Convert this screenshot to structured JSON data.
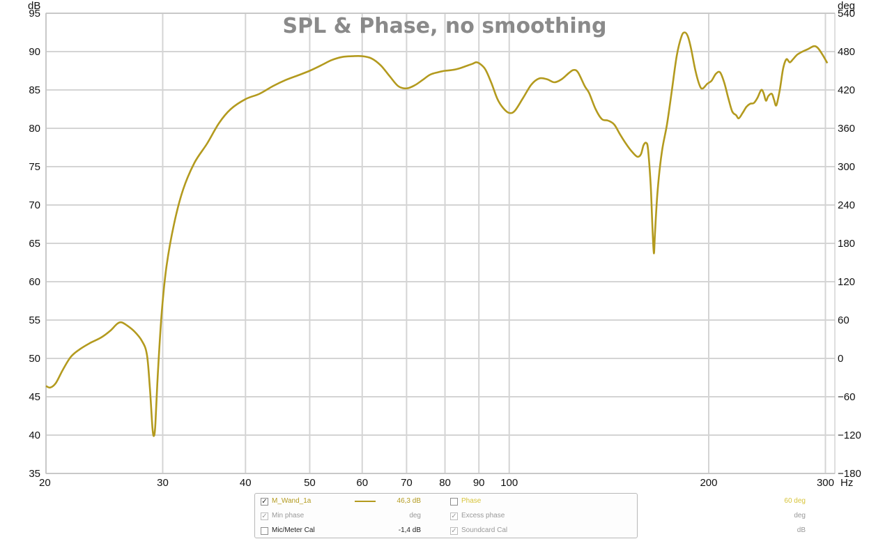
{
  "chart_data": {
    "type": "line",
    "title": "SPL & Phase, no smoothing",
    "x_scale": "log",
    "xlim": [
      20,
      310
    ],
    "x_ticks": [
      20,
      30,
      40,
      50,
      60,
      70,
      80,
      90,
      100,
      200,
      300
    ],
    "x_tick_labels": [
      "20",
      "30",
      "40",
      "50",
      "60",
      "70",
      "80",
      "90",
      "100",
      "200",
      "300"
    ],
    "x_unit": "Hz",
    "ylim": [
      35,
      95
    ],
    "y_ticks": [
      35,
      40,
      45,
      50,
      55,
      60,
      65,
      70,
      75,
      80,
      85,
      90,
      95
    ],
    "y_unit": "dB",
    "y2lim": [
      -180,
      540
    ],
    "y2_ticks": [
      -180,
      -120,
      -60,
      0,
      60,
      120,
      180,
      240,
      300,
      360,
      420,
      480,
      540
    ],
    "y2_unit": "deg",
    "grid": true,
    "series": [
      {
        "name": "M_Wand_1a",
        "color": "#b39a1e",
        "points": [
          [
            20,
            46.4
          ],
          [
            20.3,
            46.2
          ],
          [
            20.7,
            46.8
          ],
          [
            21.2,
            48.5
          ],
          [
            21.8,
            50.2
          ],
          [
            22.5,
            51.2
          ],
          [
            23.3,
            52.0
          ],
          [
            24.2,
            52.7
          ],
          [
            25.0,
            53.6
          ],
          [
            25.6,
            54.5
          ],
          [
            26.0,
            54.7
          ],
          [
            26.5,
            54.3
          ],
          [
            27.2,
            53.5
          ],
          [
            27.9,
            52.3
          ],
          [
            28.4,
            50.5
          ],
          [
            28.7,
            46.0
          ],
          [
            28.95,
            41.0
          ],
          [
            29.1,
            39.9
          ],
          [
            29.25,
            41.5
          ],
          [
            29.5,
            48.0
          ],
          [
            29.9,
            56.0
          ],
          [
            30.4,
            62.0
          ],
          [
            31.2,
            67.5
          ],
          [
            32.2,
            72.0
          ],
          [
            33.5,
            75.5
          ],
          [
            35.0,
            78.0
          ],
          [
            36.5,
            80.7
          ],
          [
            38.0,
            82.5
          ],
          [
            40.0,
            83.8
          ],
          [
            42.0,
            84.5
          ],
          [
            44.0,
            85.5
          ],
          [
            46.0,
            86.3
          ],
          [
            48.0,
            86.9
          ],
          [
            50.0,
            87.5
          ],
          [
            52.0,
            88.2
          ],
          [
            54.0,
            88.9
          ],
          [
            56.0,
            89.3
          ],
          [
            58.0,
            89.4
          ],
          [
            60.0,
            89.4
          ],
          [
            62.0,
            89.1
          ],
          [
            64.0,
            88.2
          ],
          [
            66.0,
            86.8
          ],
          [
            68.0,
            85.5
          ],
          [
            70.0,
            85.2
          ],
          [
            72.0,
            85.6
          ],
          [
            74.0,
            86.3
          ],
          [
            76.0,
            87.0
          ],
          [
            78.0,
            87.3
          ],
          [
            80.0,
            87.5
          ],
          [
            82.0,
            87.6
          ],
          [
            84.0,
            87.8
          ],
          [
            86.0,
            88.1
          ],
          [
            88.0,
            88.4
          ],
          [
            89.0,
            88.6
          ],
          [
            90.0,
            88.5
          ],
          [
            92.0,
            87.7
          ],
          [
            94.0,
            85.9
          ],
          [
            96.0,
            83.8
          ],
          [
            98.0,
            82.6
          ],
          [
            100.0,
            82.0
          ],
          [
            102.0,
            82.3
          ],
          [
            105.0,
            84.0
          ],
          [
            108.0,
            85.7
          ],
          [
            111.0,
            86.5
          ],
          [
            114.0,
            86.4
          ],
          [
            117.0,
            86.0
          ],
          [
            120.0,
            86.4
          ],
          [
            123.0,
            87.2
          ],
          [
            125.0,
            87.6
          ],
          [
            127.0,
            87.3
          ],
          [
            130.0,
            85.5
          ],
          [
            132.0,
            84.6
          ],
          [
            135.0,
            82.5
          ],
          [
            138.0,
            81.2
          ],
          [
            141.0,
            81.0
          ],
          [
            144.0,
            80.5
          ],
          [
            147.0,
            79.2
          ],
          [
            150.0,
            78.0
          ],
          [
            153.0,
            77.0
          ],
          [
            156.0,
            76.3
          ],
          [
            158.0,
            76.6
          ],
          [
            159.5,
            77.8
          ],
          [
            161.0,
            78.1
          ],
          [
            162.0,
            77.2
          ],
          [
            163.5,
            72.5
          ],
          [
            164.5,
            67.0
          ],
          [
            165.3,
            63.7
          ],
          [
            166.0,
            66.5
          ],
          [
            167.5,
            72.0
          ],
          [
            170.0,
            77.0
          ],
          [
            173.0,
            80.5
          ],
          [
            176.0,
            85.0
          ],
          [
            179.0,
            89.5
          ],
          [
            182.0,
            92.0
          ],
          [
            184.0,
            92.5
          ],
          [
            186.0,
            92.0
          ],
          [
            188.0,
            90.5
          ],
          [
            191.0,
            87.5
          ],
          [
            194.0,
            85.5
          ],
          [
            196.0,
            85.2
          ],
          [
            199.0,
            85.8
          ],
          [
            202.0,
            86.2
          ],
          [
            205.0,
            87.1
          ],
          [
            208.0,
            87.3
          ],
          [
            211.0,
            86.0
          ],
          [
            214.0,
            84.0
          ],
          [
            217.0,
            82.2
          ],
          [
            220.0,
            81.7
          ],
          [
            222.0,
            81.3
          ],
          [
            225.0,
            82.0
          ],
          [
            228.0,
            82.8
          ],
          [
            231.0,
            83.2
          ],
          [
            234.0,
            83.3
          ],
          [
            237.0,
            84.0
          ],
          [
            240.0,
            85.0
          ],
          [
            242.0,
            84.6
          ],
          [
            244.0,
            83.6
          ],
          [
            246.0,
            84.2
          ],
          [
            249.0,
            84.5
          ],
          [
            251.0,
            83.7
          ],
          [
            253.0,
            83.0
          ],
          [
            256.0,
            85.0
          ],
          [
            259.0,
            87.8
          ],
          [
            262.0,
            89.0
          ],
          [
            265.0,
            88.6
          ],
          [
            268.0,
            89.0
          ],
          [
            272.0,
            89.6
          ],
          [
            277.0,
            90.0
          ],
          [
            282.0,
            90.3
          ],
          [
            288.0,
            90.7
          ],
          [
            292.0,
            90.5
          ],
          [
            297.0,
            89.6
          ],
          [
            302.0,
            88.5
          ]
        ]
      }
    ]
  },
  "legend": {
    "rows": [
      {
        "left": {
          "label": "M_Wand_1a",
          "value": "46,3 dB",
          "checked": true,
          "dim": false,
          "active": true,
          "color": "#b39a1e",
          "swatch": true
        },
        "right": {
          "label": "Phase",
          "value": "60 deg",
          "checked": false,
          "dim": false,
          "active": true,
          "color": "#d7c43a",
          "swatch": false
        }
      },
      {
        "left": {
          "label": "Min phase",
          "value": "deg",
          "checked": true,
          "dim": true,
          "active": false,
          "color": "#999999",
          "swatch": false
        },
        "right": {
          "label": "Excess phase",
          "value": "deg",
          "checked": true,
          "dim": true,
          "active": false,
          "color": "#999999",
          "swatch": false
        }
      },
      {
        "left": {
          "label": "Mic/Meter Cal",
          "value": "-1,4 dB",
          "checked": false,
          "dim": false,
          "active": false,
          "color": "#222222",
          "swatch": false
        },
        "right": {
          "label": "Soundcard Cal",
          "value": "dB",
          "checked": true,
          "dim": true,
          "active": false,
          "color": "#999999",
          "swatch": false
        }
      }
    ]
  }
}
